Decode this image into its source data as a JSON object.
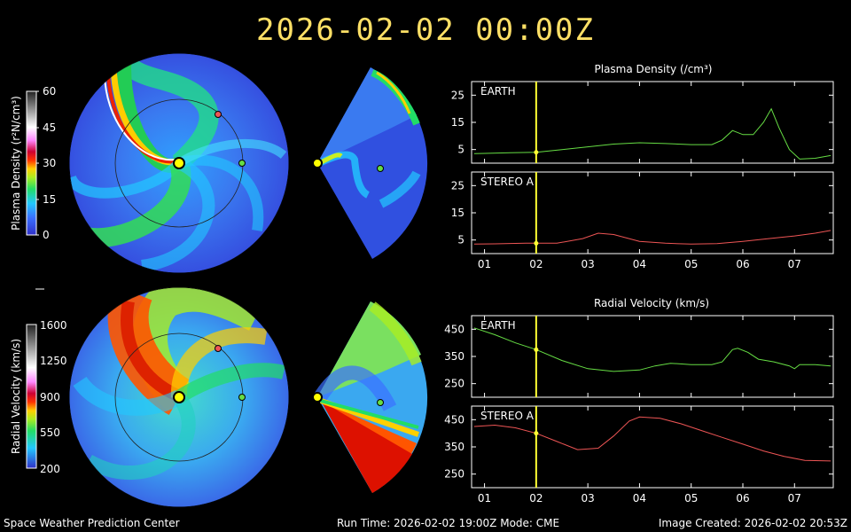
{
  "header": {
    "timestamp": "2026-02-02  00:00Z"
  },
  "footer": {
    "organization": "Space Weather Prediction Center",
    "run_info": "Run Time: 2026-02-02 19:00Z  Mode: CME",
    "image_created": "Image Created: 2026-02-02 20:53Z"
  },
  "colorbars": [
    {
      "label": "Plasma Density (r²N/cm³)",
      "ticks": [
        "60",
        "45",
        "30",
        "15",
        "0"
      ]
    },
    {
      "label": "Radial Velocity (km/s)",
      "ticks": [
        "1600",
        "1250",
        "900",
        "550",
        "200"
      ]
    }
  ],
  "colors": {
    "title": "#ffe066",
    "earth": "#66dd44",
    "stereo": "#ee5555",
    "cursor": "#ffff33",
    "sun": "#ffff00"
  },
  "chart_data": [
    {
      "type": "line",
      "title": "Plasma Density (/cm³)",
      "panels": [
        {
          "label": "EARTH",
          "color": "#66dd44",
          "ylim": [
            0,
            30
          ],
          "yticks": [
            5,
            15,
            25
          ],
          "x": [
            0.8,
            1.0,
            1.5,
            2.0,
            2.5,
            3.0,
            3.5,
            4.0,
            4.5,
            5.0,
            5.4,
            5.6,
            5.8,
            6.0,
            6.2,
            6.4,
            6.55,
            6.7,
            6.9,
            7.1,
            7.4,
            7.7
          ],
          "y": [
            3.5,
            3.6,
            3.8,
            4.0,
            5.0,
            6.0,
            7.0,
            7.5,
            7.2,
            6.8,
            6.8,
            8.5,
            12,
            10.5,
            10.5,
            15,
            20,
            13,
            5,
            1.5,
            1.8,
            2.8
          ]
        },
        {
          "label": "STEREO A",
          "color": "#ee5555",
          "ylim": [
            0,
            30
          ],
          "yticks": [
            5,
            15,
            25
          ],
          "x": [
            0.8,
            1.2,
            1.8,
            2.4,
            2.9,
            3.2,
            3.5,
            4.0,
            4.5,
            5.0,
            5.5,
            6.0,
            6.5,
            7.0,
            7.4,
            7.7
          ],
          "y": [
            3.5,
            3.6,
            3.8,
            3.8,
            5.5,
            7.5,
            7.0,
            4.5,
            3.8,
            3.5,
            3.7,
            4.5,
            5.5,
            6.5,
            7.5,
            8.5
          ]
        }
      ],
      "xticks": [
        "01",
        "02",
        "03",
        "04",
        "05",
        "06",
        "07"
      ],
      "xlim": [
        0.75,
        7.75
      ],
      "cursor_x": 2.0
    },
    {
      "type": "line",
      "title": "Radial Velocity (km/s)",
      "panels": [
        {
          "label": "EARTH",
          "color": "#66dd44",
          "ylim": [
            200,
            500
          ],
          "yticks": [
            250,
            350,
            450
          ],
          "x": [
            0.8,
            1.2,
            1.6,
            2.0,
            2.5,
            3.0,
            3.5,
            4.0,
            4.3,
            4.6,
            5.0,
            5.4,
            5.6,
            5.8,
            5.9,
            6.1,
            6.3,
            6.6,
            6.9,
            7.0,
            7.1,
            7.4,
            7.7
          ],
          "y": [
            455,
            430,
            400,
            375,
            335,
            305,
            295,
            300,
            315,
            325,
            320,
            320,
            330,
            375,
            380,
            365,
            340,
            330,
            315,
            305,
            320,
            320,
            315
          ]
        },
        {
          "label": "STEREO A",
          "color": "#ee5555",
          "ylim": [
            200,
            500
          ],
          "yticks": [
            250,
            350,
            450
          ],
          "x": [
            0.8,
            1.2,
            1.6,
            2.0,
            2.4,
            2.8,
            3.2,
            3.5,
            3.8,
            4.0,
            4.4,
            4.8,
            5.2,
            5.6,
            6.0,
            6.4,
            6.8,
            7.2,
            7.7
          ],
          "y": [
            425,
            430,
            420,
            400,
            370,
            340,
            345,
            390,
            445,
            460,
            455,
            435,
            410,
            385,
            360,
            335,
            315,
            300,
            298
          ]
        }
      ],
      "xticks": [
        "01",
        "02",
        "03",
        "04",
        "05",
        "06",
        "07"
      ],
      "xlim": [
        0.75,
        7.75
      ],
      "cursor_x": 2.0
    }
  ]
}
